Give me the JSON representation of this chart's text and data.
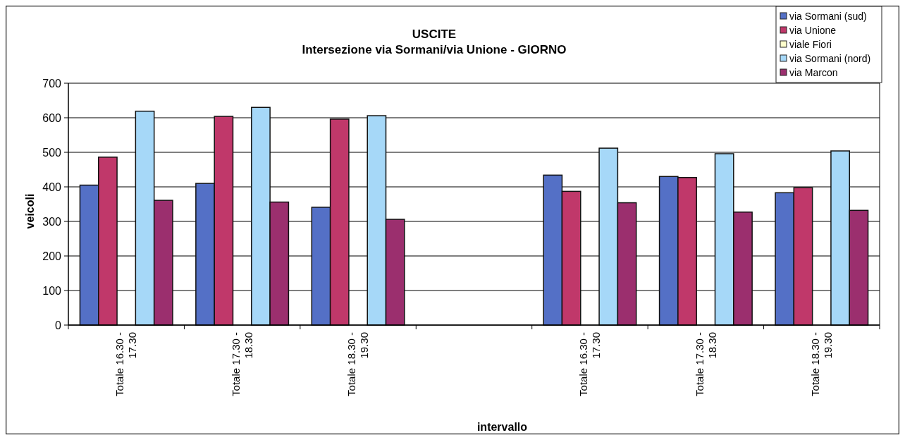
{
  "chart_data": {
    "type": "bar",
    "title": "USCITE",
    "subtitle": "Intersezione via Sormani/via Unione  - GIORNO",
    "xlabel": "intervallo",
    "ylabel": "veicoli",
    "categories": [
      "Totale 16.30 - 17.30",
      "Totale 17.30 - 18.30",
      "Totale 18.30 - 19.30",
      null,
      "Totale 16.30 - 17.30",
      "Totale 17.30 - 18.30",
      "Totale 18.30 - 19.30"
    ],
    "series": [
      {
        "name": "via Sormani (sud)",
        "color": "#5470c6",
        "values": [
          405,
          410,
          341,
          null,
          434,
          430,
          383
        ]
      },
      {
        "name": "via Unione",
        "color": "#c0386a",
        "values": [
          486,
          604,
          596,
          null,
          387,
          427,
          398
        ]
      },
      {
        "name": "viale Fiori",
        "color": "#ffffcc",
        "values": [
          0,
          0,
          0,
          null,
          0,
          0,
          0
        ]
      },
      {
        "name": "via Sormani (nord)",
        "color": "#a6d8f8",
        "values": [
          619,
          630,
          606,
          null,
          512,
          496,
          504
        ]
      },
      {
        "name": "via Marcon",
        "color": "#9b2f6e",
        "values": [
          361,
          356,
          306,
          null,
          354,
          327,
          332
        ]
      }
    ],
    "ylim": [
      0,
      700
    ],
    "yticks": [
      0,
      100,
      200,
      300,
      400,
      500,
      600,
      700
    ],
    "grid": "y",
    "legend": "top right"
  }
}
